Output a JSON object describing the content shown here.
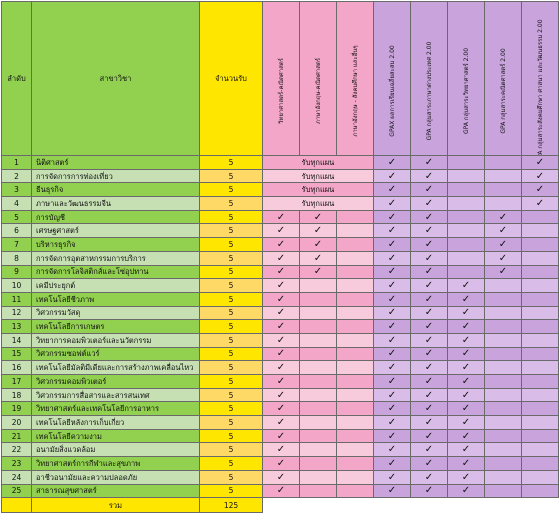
{
  "header": {
    "no": "ลำดับ",
    "major": "สาขาวิชา",
    "seats": "จำนวนรับ",
    "cols": [
      "วิทยาศาสตร์-คณิตศาสตร์",
      "ภาษาอังกฤษ-คณิตศาสตร์",
      "ภาษาอังกฤษ - สังคมศึกษา และอื่นๆ",
      "GPAX ผลการเรียนเฉลี่ยสะสม 2.00",
      "GPA กลุ่มสาระภาษาต่างประเทศ 2.00",
      "GPA กลุ่มสาระวิทยาศาสตร์ 2.00",
      "GPA กลุ่มสาระคณิตศาสตร์ 2.00",
      "GPA กลุ่มสาระสังคมศึกษา ศาสนา และวัฒนธรรม 2.00"
    ]
  },
  "mark": "✓",
  "any_plan": "รับทุกแผน",
  "rows": [
    {
      "no": "1",
      "name": "นิติศาสตร์",
      "seats": "5",
      "plan": "any",
      "m": [
        0,
        0,
        0,
        1,
        1,
        0,
        0,
        1
      ]
    },
    {
      "no": "2",
      "name": "การจัดการการท่องเที่ยว",
      "seats": "5",
      "plan": "any",
      "m": [
        0,
        0,
        0,
        1,
        1,
        0,
        0,
        1
      ]
    },
    {
      "no": "3",
      "name": "ธีนธุรกิจ",
      "seats": "5",
      "plan": "any",
      "m": [
        0,
        0,
        0,
        1,
        1,
        0,
        0,
        1
      ]
    },
    {
      "no": "4",
      "name": "ภาษาและวัฒนธรรมจีน",
      "seats": "5",
      "plan": "any",
      "m": [
        0,
        0,
        0,
        1,
        1,
        0,
        0,
        1
      ]
    },
    {
      "no": "5",
      "name": "การบัญชี",
      "seats": "5",
      "plan": "",
      "m": [
        1,
        1,
        0,
        1,
        1,
        0,
        1,
        0
      ]
    },
    {
      "no": "6",
      "name": "เศรษฐศาสตร์",
      "seats": "5",
      "plan": "",
      "m": [
        1,
        1,
        0,
        1,
        1,
        0,
        1,
        0
      ]
    },
    {
      "no": "7",
      "name": "บริหารธุรกิจ",
      "seats": "5",
      "plan": "",
      "m": [
        1,
        1,
        0,
        1,
        1,
        0,
        1,
        0
      ]
    },
    {
      "no": "8",
      "name": "การจัดการอุตสาหกรรมการบริการ",
      "seats": "5",
      "plan": "",
      "m": [
        1,
        1,
        0,
        1,
        1,
        0,
        1,
        0
      ]
    },
    {
      "no": "9",
      "name": "การจัดการโลจิสติกส์และโซ่อุปทาน",
      "seats": "5",
      "plan": "",
      "m": [
        1,
        1,
        0,
        1,
        1,
        0,
        1,
        0
      ]
    },
    {
      "no": "10",
      "name": "เคมีประยุกต์",
      "seats": "5",
      "plan": "",
      "m": [
        1,
        0,
        0,
        1,
        1,
        1,
        0,
        0
      ]
    },
    {
      "no": "11",
      "name": "เทคโนโลยีชีวภาพ",
      "seats": "5",
      "plan": "",
      "m": [
        1,
        0,
        0,
        1,
        1,
        1,
        0,
        0
      ]
    },
    {
      "no": "12",
      "name": "วิศวกรรมวัสดุ",
      "seats": "5",
      "plan": "",
      "m": [
        1,
        0,
        0,
        1,
        1,
        1,
        0,
        0
      ]
    },
    {
      "no": "13",
      "name": "เทคโนโลยีการเกษตร",
      "seats": "5",
      "plan": "",
      "m": [
        1,
        0,
        0,
        1,
        1,
        1,
        0,
        0
      ]
    },
    {
      "no": "14",
      "name": "วิทยาการคอมพิวเตอร์และนวัตกรรม",
      "seats": "5",
      "plan": "",
      "m": [
        1,
        0,
        0,
        1,
        1,
        1,
        0,
        0
      ]
    },
    {
      "no": "15",
      "name": "วิศวกรรมซอฟต์แวร์",
      "seats": "5",
      "plan": "",
      "m": [
        1,
        0,
        0,
        1,
        1,
        1,
        0,
        0
      ]
    },
    {
      "no": "16",
      "name": "เทคโนโลยีมัลติมีเดียและการสร้างภาพเคลื่อนไหว",
      "seats": "5",
      "plan": "",
      "m": [
        1,
        0,
        0,
        1,
        1,
        1,
        0,
        0
      ]
    },
    {
      "no": "17",
      "name": "วิศวกรรมคอมพิวเตอร์",
      "seats": "5",
      "plan": "",
      "m": [
        1,
        0,
        0,
        1,
        1,
        1,
        0,
        0
      ]
    },
    {
      "no": "18",
      "name": "วิศวกรรมการสื่อสารและสารสนเทศ",
      "seats": "5",
      "plan": "",
      "m": [
        1,
        0,
        0,
        1,
        1,
        1,
        0,
        0
      ]
    },
    {
      "no": "19",
      "name": "วิทยาศาสตร์และเทคโนโลยีการอาหาร",
      "seats": "5",
      "plan": "",
      "m": [
        1,
        0,
        0,
        1,
        1,
        1,
        0,
        0
      ]
    },
    {
      "no": "20",
      "name": "เทคโนโลยีหลังการเก็บเกี่ยว",
      "seats": "5",
      "plan": "",
      "m": [
        1,
        0,
        0,
        1,
        1,
        1,
        0,
        0
      ]
    },
    {
      "no": "21",
      "name": "เทคโนโลยีความงาม",
      "seats": "5",
      "plan": "",
      "m": [
        1,
        0,
        0,
        1,
        1,
        1,
        0,
        0
      ]
    },
    {
      "no": "22",
      "name": "อนามัยสิ่งแวดล้อม",
      "seats": "5",
      "plan": "",
      "m": [
        1,
        0,
        0,
        1,
        1,
        1,
        0,
        0
      ]
    },
    {
      "no": "23",
      "name": "วิทยาศาสตร์การกีฬาและสุขภาพ",
      "seats": "5",
      "plan": "",
      "m": [
        1,
        0,
        0,
        1,
        1,
        1,
        0,
        0
      ]
    },
    {
      "no": "24",
      "name": "อาชีวอนามัยและความปลอดภัย",
      "seats": "5",
      "plan": "",
      "m": [
        1,
        0,
        0,
        1,
        1,
        1,
        0,
        0
      ]
    },
    {
      "no": "25",
      "name": "สาธารณสุขศาสตร์",
      "seats": "5",
      "plan": "",
      "m": [
        1,
        0,
        0,
        1,
        1,
        1,
        0,
        0
      ]
    }
  ],
  "total": {
    "label": "รวม",
    "value": "125"
  },
  "colors": {
    "green": "#92d050",
    "green_light": "#c6e0b4",
    "yellow": "#ffd966",
    "yellow_bright": "#ffe600",
    "pink_header": "#f4a6c8",
    "pink_cell": "#f8cbdc",
    "purple": "#c9a3dc",
    "purple_cell": "#d9bde8",
    "total_bg": "#ffe600"
  }
}
